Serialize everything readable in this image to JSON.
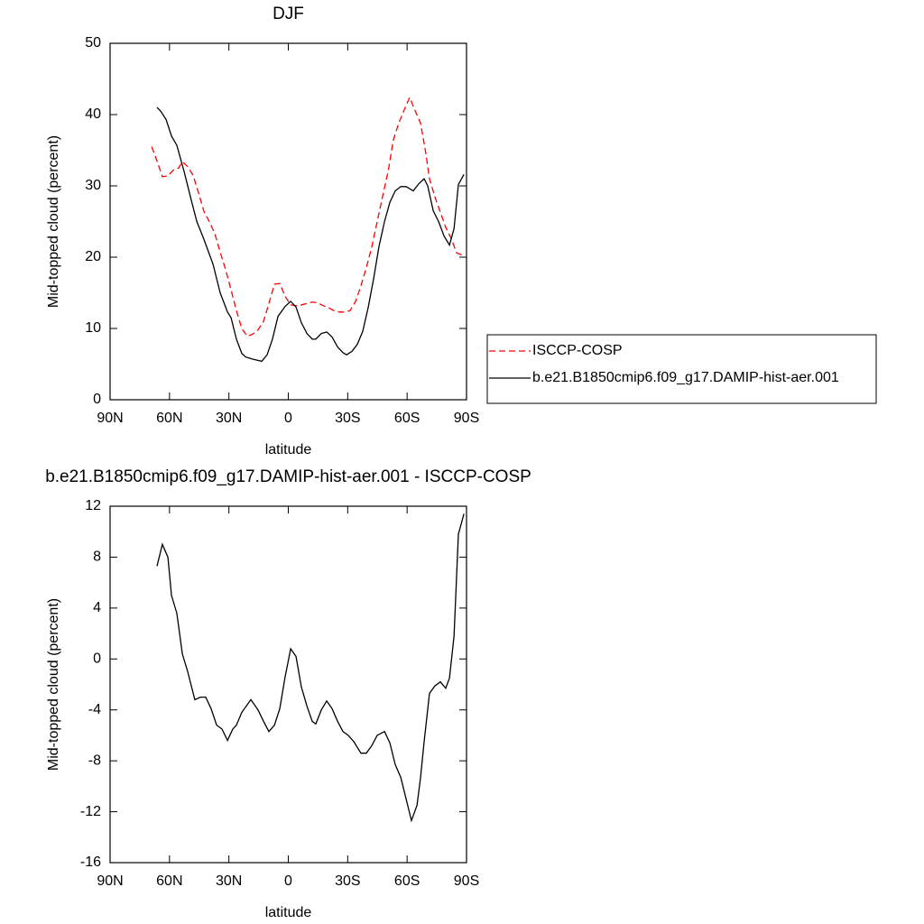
{
  "chart_data": [
    {
      "type": "line",
      "title": "DJF",
      "x_label": "latitude",
      "y_label": "Mid-topped cloud (percent)",
      "xlim": [
        90,
        -90
      ],
      "xticks": [
        {
          "value": 90,
          "label": "90N"
        },
        {
          "value": 60,
          "label": "60N"
        },
        {
          "value": 30,
          "label": "30N"
        },
        0,
        {
          "value": -30,
          "label": "30S"
        },
        {
          "value": -60,
          "label": "60S"
        },
        {
          "value": -90,
          "label": "90S"
        }
      ],
      "ylim": [
        0,
        50
      ],
      "yticks": [
        0,
        10,
        20,
        30,
        40,
        50
      ],
      "legend": true,
      "legend_position": "right",
      "series": [
        {
          "name": "ISCCP-COSP",
          "color": "#ff0000",
          "dash": true,
          "x": [
            69,
            66.3,
            63.6,
            60.8,
            58.1,
            55.4,
            53.5,
            50.8,
            48.1,
            45.3,
            42.6,
            39.9,
            37.1,
            34.4,
            31.7,
            28.9,
            26.2,
            23.5,
            20.7,
            18,
            15.3,
            12.5,
            9.8,
            7,
            4.3,
            1.6,
            -1.2,
            -3.9,
            -6.6,
            -9.4,
            -12.1,
            -14.8,
            -17.6,
            -20.3,
            -23,
            -25.8,
            -28.5,
            -31.2,
            -34,
            -36.7,
            -39.4,
            -42.2,
            -44.9,
            -47.6,
            -50.4,
            -53.1,
            -55.8,
            -58.6,
            -61.3,
            -64.1,
            -66.8,
            -69.5,
            -71.3,
            -74.1,
            -76.8,
            -79.5,
            -82.3,
            -85,
            -88.7
          ],
          "values": [
            35.5,
            33.5,
            31.3,
            31.4,
            32.2,
            32.5,
            33.4,
            32.7,
            31.5,
            29,
            26.4,
            25,
            23.3,
            20.7,
            18.3,
            15.4,
            12.5,
            10,
            8.9,
            9.2,
            9.8,
            11,
            13.5,
            16.2,
            16.3,
            14.5,
            13.3,
            13.2,
            13.3,
            13.5,
            13.7,
            13.6,
            13.2,
            12.9,
            12.5,
            12.3,
            12.3,
            12.5,
            13.8,
            16,
            18.5,
            21.5,
            25,
            28.5,
            32,
            36.5,
            38.8,
            40.7,
            42.4,
            40.5,
            38.8,
            34.5,
            31,
            28.4,
            26.3,
            24.2,
            22.6,
            20.6,
            20.2
          ]
        },
        {
          "name": "b.e21.B1850cmip6.f09_g17.DAMIP-hist-aer.001",
          "color": "#000000",
          "dash": false,
          "x": [
            66.3,
            64.5,
            61.7,
            59,
            56.3,
            52.6,
            49,
            46.2,
            42.6,
            38,
            34.4,
            30.7,
            28.9,
            26.2,
            23.5,
            21.6,
            18,
            13.4,
            10.7,
            8,
            5.2,
            1.6,
            -1.2,
            -3.9,
            -6.6,
            -9.4,
            -12.1,
            -13.9,
            -16.7,
            -19.4,
            -22.1,
            -24.9,
            -27.6,
            -29.4,
            -32.2,
            -34.9,
            -37.6,
            -40.4,
            -43.1,
            -45.8,
            -48.6,
            -51.3,
            -54,
            -56.8,
            -59.5,
            -63.1,
            -65.9,
            -68.6,
            -70.4,
            -73.2,
            -75.9,
            -78.6,
            -81.4,
            -83.7,
            -85.9,
            -88.7
          ],
          "values": [
            41,
            40.5,
            39.3,
            37,
            35.7,
            32,
            28,
            25,
            22.5,
            19,
            15,
            12.3,
            11.5,
            8.5,
            6.5,
            6,
            5.7,
            5.4,
            6.3,
            8.5,
            11.7,
            13.1,
            13.8,
            13,
            10.8,
            9.3,
            8.5,
            8.5,
            9.3,
            9.5,
            8.8,
            7.4,
            6.6,
            6.3,
            6.8,
            7.8,
            9.6,
            13,
            17,
            21.5,
            25,
            27.7,
            29.3,
            29.9,
            29.9,
            29.3,
            30.3,
            31,
            30,
            26.5,
            25,
            23,
            21.7,
            24,
            30.2,
            31.6
          ]
        }
      ]
    },
    {
      "type": "line",
      "title": "b.e21.B1850cmip6.f09_g17.DAMIP-hist-aer.001 - ISCCP-COSP",
      "x_label": "latitude",
      "y_label": "Mid-topped cloud (percent)",
      "xlim": [
        90,
        -90
      ],
      "xticks": [
        {
          "value": 90,
          "label": "90N"
        },
        {
          "value": 60,
          "label": "60N"
        },
        {
          "value": 30,
          "label": "30N"
        },
        0,
        {
          "value": -30,
          "label": "30S"
        },
        {
          "value": -60,
          "label": "60S"
        },
        {
          "value": -90,
          "label": "90S"
        }
      ],
      "ylim": [
        -16,
        12
      ],
      "yticks": [
        -16,
        -12,
        -8,
        -4,
        0,
        4,
        8,
        12
      ],
      "legend": false,
      "series": [
        {
          "color": "#000000",
          "dash": false,
          "x": [
            66.3,
            63.6,
            60.8,
            59,
            56.3,
            53.5,
            50.8,
            47.2,
            44.4,
            41.7,
            39,
            36.2,
            33.5,
            30.7,
            28,
            26.2,
            23.5,
            18.9,
            15.3,
            12.5,
            9.8,
            7,
            4.3,
            1.6,
            -1.2,
            -3.9,
            -6.6,
            -9.4,
            -12.1,
            -13.9,
            -16.7,
            -19.4,
            -22.1,
            -24.9,
            -27.6,
            -30.3,
            -33.1,
            -36.7,
            -39.4,
            -42.2,
            -44.9,
            -48.6,
            -51.3,
            -54,
            -56.8,
            -59.5,
            -62.2,
            -65,
            -66.8,
            -68.6,
            -71.3,
            -74.1,
            -76.8,
            -79.5,
            -81.4,
            -83.7,
            -85.9,
            -88.7
          ],
          "values": [
            7.3,
            9,
            8,
            5,
            3.6,
            0.4,
            -1,
            -3.2,
            -3,
            -3,
            -3.9,
            -5.2,
            -5.5,
            -6.4,
            -5.5,
            -5.2,
            -4.2,
            -3.2,
            -4,
            -4.9,
            -5.7,
            -5.2,
            -3.9,
            -1.4,
            0.8,
            0.2,
            -2.2,
            -3.7,
            -4.9,
            -5.1,
            -4,
            -3.3,
            -3.9,
            -4.9,
            -5.7,
            -6,
            -6.5,
            -7.4,
            -7.4,
            -6.8,
            -6,
            -5.7,
            -6.6,
            -8.3,
            -9.3,
            -11,
            -12.7,
            -11.5,
            -9.3,
            -6.5,
            -2.7,
            -2.1,
            -1.8,
            -2.3,
            -1.5,
            1.8,
            9.8,
            11.4
          ]
        }
      ]
    }
  ]
}
